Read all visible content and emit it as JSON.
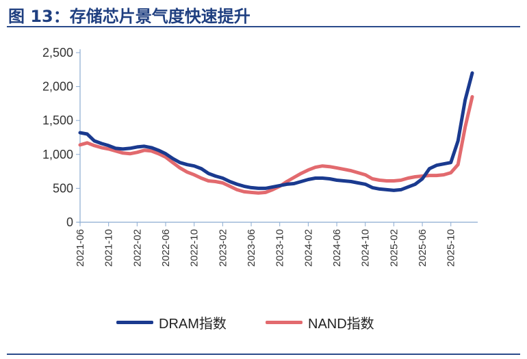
{
  "title": "图 13：存储芯片景气度快速提升",
  "colors": {
    "title": "#1f3f80",
    "dram": "#1a3a8f",
    "nand": "#e26a6e",
    "axis": "#8aaad0"
  },
  "chart_data": {
    "type": "line",
    "xlabel": "",
    "ylabel": "",
    "ylim": [
      0,
      2500
    ],
    "yticks": [
      "2,500",
      "2,000",
      "1,500",
      "1,000",
      "500",
      "0"
    ],
    "ytick_values": [
      2500,
      2000,
      1500,
      1000,
      500,
      0
    ],
    "xtick_labels": [
      "2021-06",
      "2021-10",
      "2022-02",
      "2022-06",
      "2022-10",
      "2023-02",
      "2023-06",
      "2023-10",
      "2024-02",
      "2024-06",
      "2024-10",
      "2025-02",
      "2025-06",
      "2025-10"
    ],
    "grid": false,
    "legend_position": "bottom",
    "series": [
      {
        "name": "DRAM指数",
        "color": "#1a3a8f",
        "points": [
          [
            "2021-06",
            1320
          ],
          [
            "2021-07",
            1300
          ],
          [
            "2021-08",
            1200
          ],
          [
            "2021-09",
            1160
          ],
          [
            "2021-10",
            1130
          ],
          [
            "2021-11",
            1090
          ],
          [
            "2021-12",
            1080
          ],
          [
            "2022-01",
            1090
          ],
          [
            "2022-02",
            1110
          ],
          [
            "2022-03",
            1120
          ],
          [
            "2022-04",
            1100
          ],
          [
            "2022-05",
            1060
          ],
          [
            "2022-06",
            1010
          ],
          [
            "2022-07",
            940
          ],
          [
            "2022-08",
            880
          ],
          [
            "2022-09",
            850
          ],
          [
            "2022-10",
            830
          ],
          [
            "2022-11",
            790
          ],
          [
            "2022-12",
            720
          ],
          [
            "2023-01",
            680
          ],
          [
            "2023-02",
            650
          ],
          [
            "2023-03",
            600
          ],
          [
            "2023-04",
            560
          ],
          [
            "2023-05",
            530
          ],
          [
            "2023-06",
            510
          ],
          [
            "2023-07",
            500
          ],
          [
            "2023-08",
            500
          ],
          [
            "2023-09",
            520
          ],
          [
            "2023-10",
            540
          ],
          [
            "2023-11",
            560
          ],
          [
            "2023-12",
            570
          ],
          [
            "2024-01",
            600
          ],
          [
            "2024-02",
            630
          ],
          [
            "2024-03",
            650
          ],
          [
            "2024-04",
            650
          ],
          [
            "2024-05",
            640
          ],
          [
            "2024-06",
            620
          ],
          [
            "2024-07",
            610
          ],
          [
            "2024-08",
            600
          ],
          [
            "2024-09",
            580
          ],
          [
            "2024-10",
            560
          ],
          [
            "2024-11",
            510
          ],
          [
            "2024-12",
            490
          ],
          [
            "2025-01",
            480
          ],
          [
            "2025-02",
            470
          ],
          [
            "2025-03",
            480
          ],
          [
            "2025-04",
            520
          ],
          [
            "2025-05",
            560
          ],
          [
            "2025-06",
            640
          ],
          [
            "2025-07",
            790
          ],
          [
            "2025-08",
            840
          ],
          [
            "2025-09",
            860
          ],
          [
            "2025-10",
            880
          ],
          [
            "2025-11",
            1200
          ],
          [
            "2025-12",
            1800
          ],
          [
            "2026-01",
            2200
          ]
        ]
      },
      {
        "name": "NAND指数",
        "color": "#e26a6e",
        "points": [
          [
            "2021-06",
            1140
          ],
          [
            "2021-07",
            1170
          ],
          [
            "2021-08",
            1130
          ],
          [
            "2021-09",
            1100
          ],
          [
            "2021-10",
            1080
          ],
          [
            "2021-11",
            1050
          ],
          [
            "2021-12",
            1020
          ],
          [
            "2022-01",
            1010
          ],
          [
            "2022-02",
            1030
          ],
          [
            "2022-03",
            1060
          ],
          [
            "2022-04",
            1050
          ],
          [
            "2022-05",
            1010
          ],
          [
            "2022-06",
            960
          ],
          [
            "2022-07",
            880
          ],
          [
            "2022-08",
            800
          ],
          [
            "2022-09",
            740
          ],
          [
            "2022-10",
            700
          ],
          [
            "2022-11",
            650
          ],
          [
            "2022-12",
            610
          ],
          [
            "2023-01",
            600
          ],
          [
            "2023-02",
            580
          ],
          [
            "2023-03",
            530
          ],
          [
            "2023-04",
            480
          ],
          [
            "2023-05",
            450
          ],
          [
            "2023-06",
            440
          ],
          [
            "2023-07",
            430
          ],
          [
            "2023-08",
            440
          ],
          [
            "2023-09",
            480
          ],
          [
            "2023-10",
            530
          ],
          [
            "2023-11",
            600
          ],
          [
            "2023-12",
            660
          ],
          [
            "2024-01",
            720
          ],
          [
            "2024-02",
            770
          ],
          [
            "2024-03",
            810
          ],
          [
            "2024-04",
            830
          ],
          [
            "2024-05",
            820
          ],
          [
            "2024-06",
            800
          ],
          [
            "2024-07",
            780
          ],
          [
            "2024-08",
            760
          ],
          [
            "2024-09",
            730
          ],
          [
            "2024-10",
            700
          ],
          [
            "2024-11",
            640
          ],
          [
            "2024-12",
            620
          ],
          [
            "2025-01",
            610
          ],
          [
            "2025-02",
            610
          ],
          [
            "2025-03",
            620
          ],
          [
            "2025-04",
            650
          ],
          [
            "2025-05",
            670
          ],
          [
            "2025-06",
            680
          ],
          [
            "2025-07",
            690
          ],
          [
            "2025-08",
            690
          ],
          [
            "2025-09",
            700
          ],
          [
            "2025-10",
            730
          ],
          [
            "2025-11",
            850
          ],
          [
            "2025-12",
            1400
          ],
          [
            "2026-01",
            1850
          ]
        ]
      }
    ]
  },
  "legend": {
    "dram": "DRAM指数",
    "nand": "NAND指数"
  }
}
